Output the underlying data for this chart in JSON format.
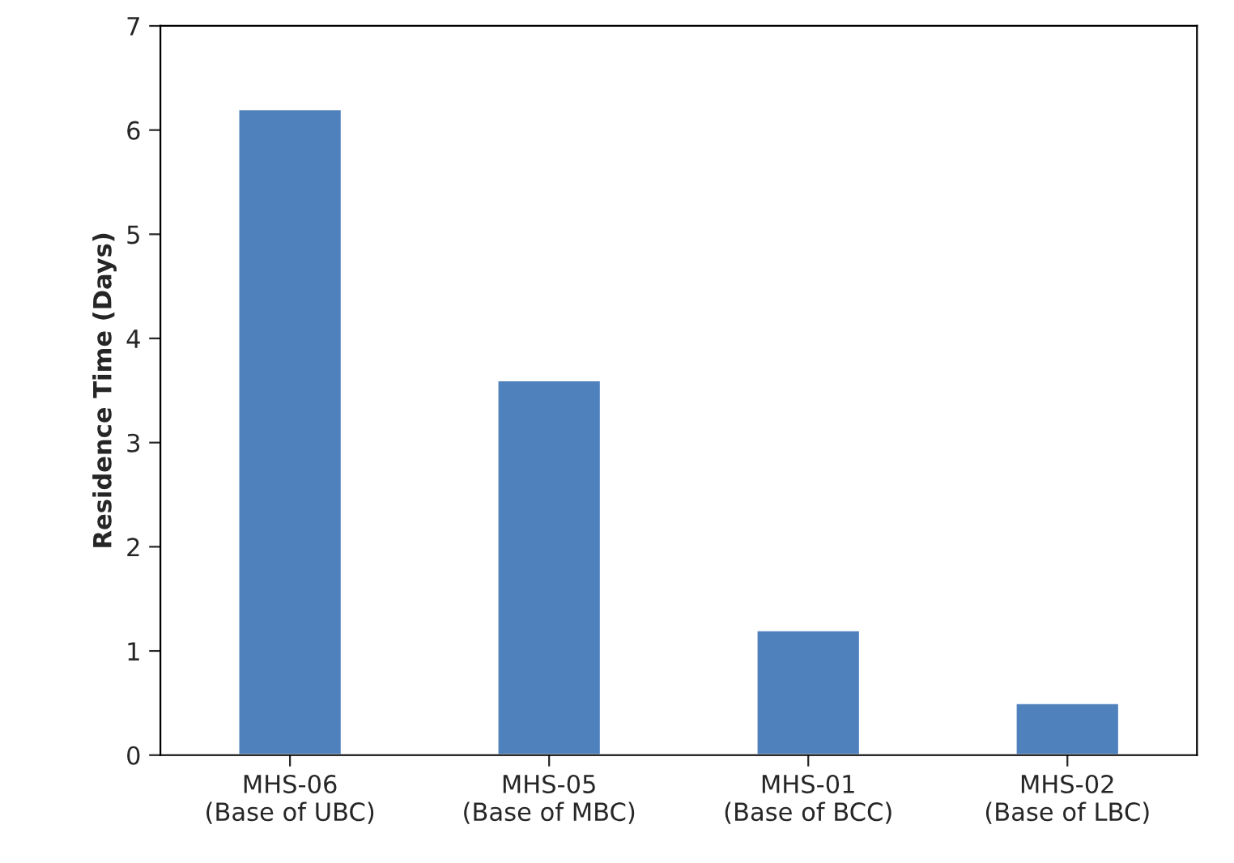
{
  "chart_data": {
    "type": "bar",
    "ylabel": "Residence Time (Days)",
    "categories": [
      "MHS-06\n(Base of UBC)",
      "MHS-05\n(Base of MBC)",
      "MHS-01\n(Base of BCC)",
      "MHS-02\n(Base of LBC)"
    ],
    "values": [
      6.2,
      3.6,
      1.2,
      0.5
    ],
    "color": "#4f81bd",
    "ylim": [
      0,
      7
    ],
    "yticks": [
      0,
      1,
      2,
      3,
      4,
      5,
      6,
      7
    ],
    "grid": false,
    "legend": false
  }
}
